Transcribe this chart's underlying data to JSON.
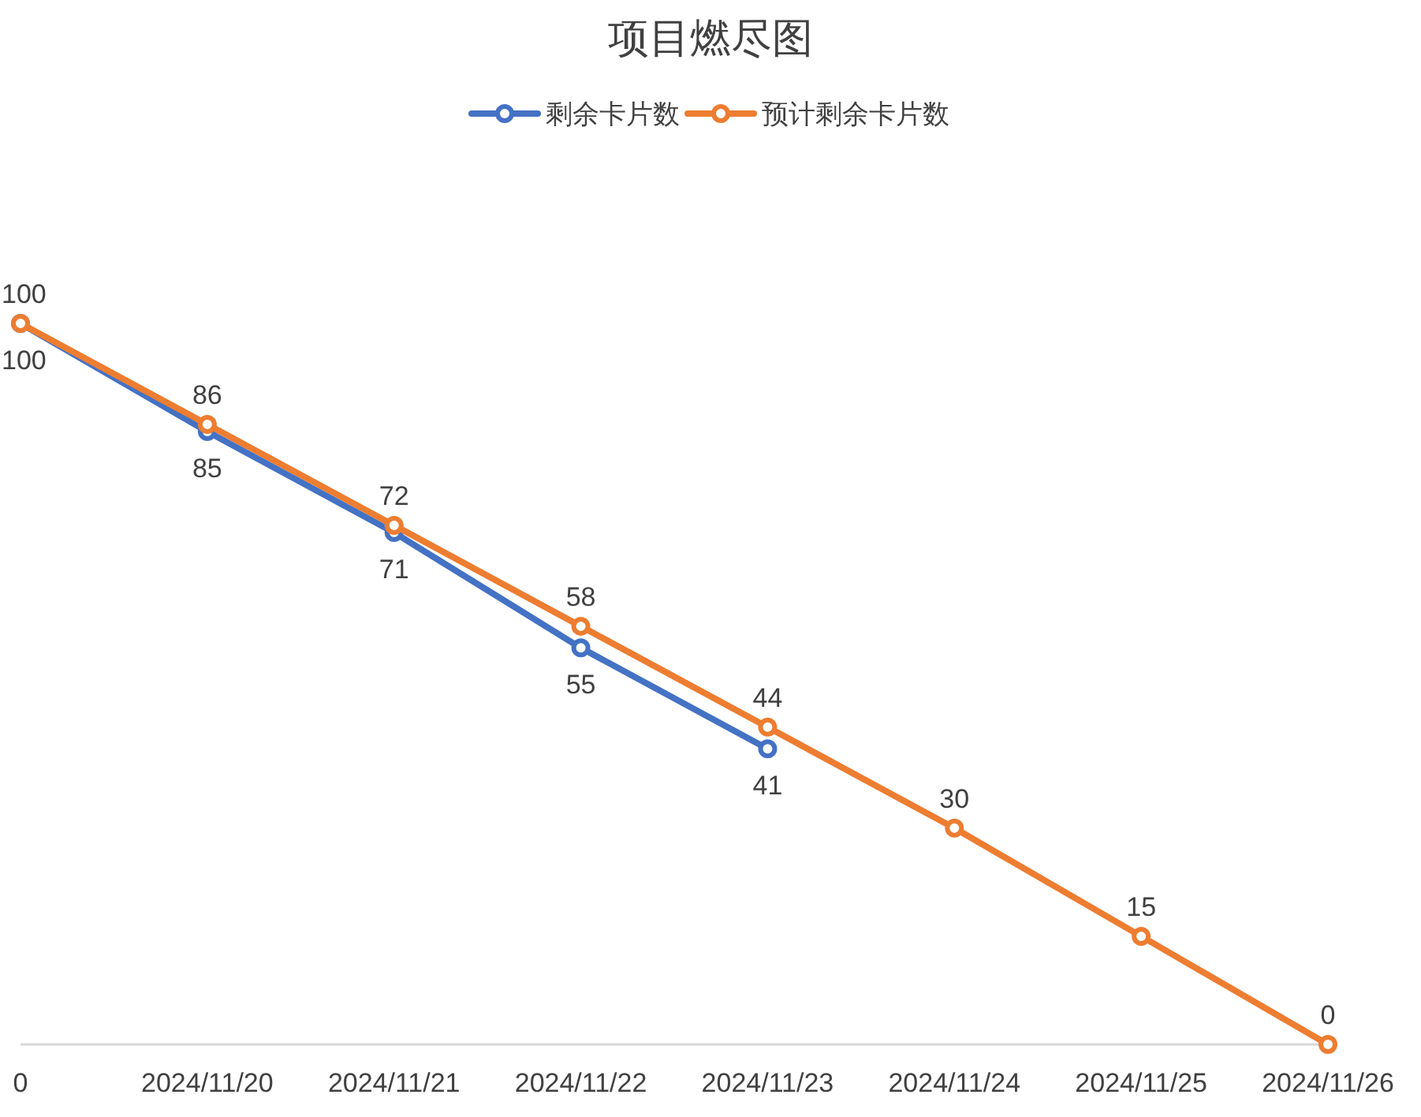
{
  "chart_data": {
    "type": "line",
    "title": "项目燃尽图",
    "categories": [
      "0",
      "2024/11/20",
      "2024/11/21",
      "2024/11/22",
      "2024/11/23",
      "2024/11/24",
      "2024/11/25",
      "2024/11/26"
    ],
    "series": [
      {
        "name": "剩余卡片数",
        "color": "#4472c4",
        "values": [
          100,
          85,
          71,
          55,
          41,
          null,
          null,
          null
        ]
      },
      {
        "name": "预计剩余卡片数",
        "color": "#ed7d31",
        "values": [
          100,
          86,
          72,
          58,
          44,
          30,
          15,
          0
        ]
      }
    ],
    "data_labels": true,
    "legend": "top",
    "marker": "circle",
    "line_style": "solid"
  }
}
